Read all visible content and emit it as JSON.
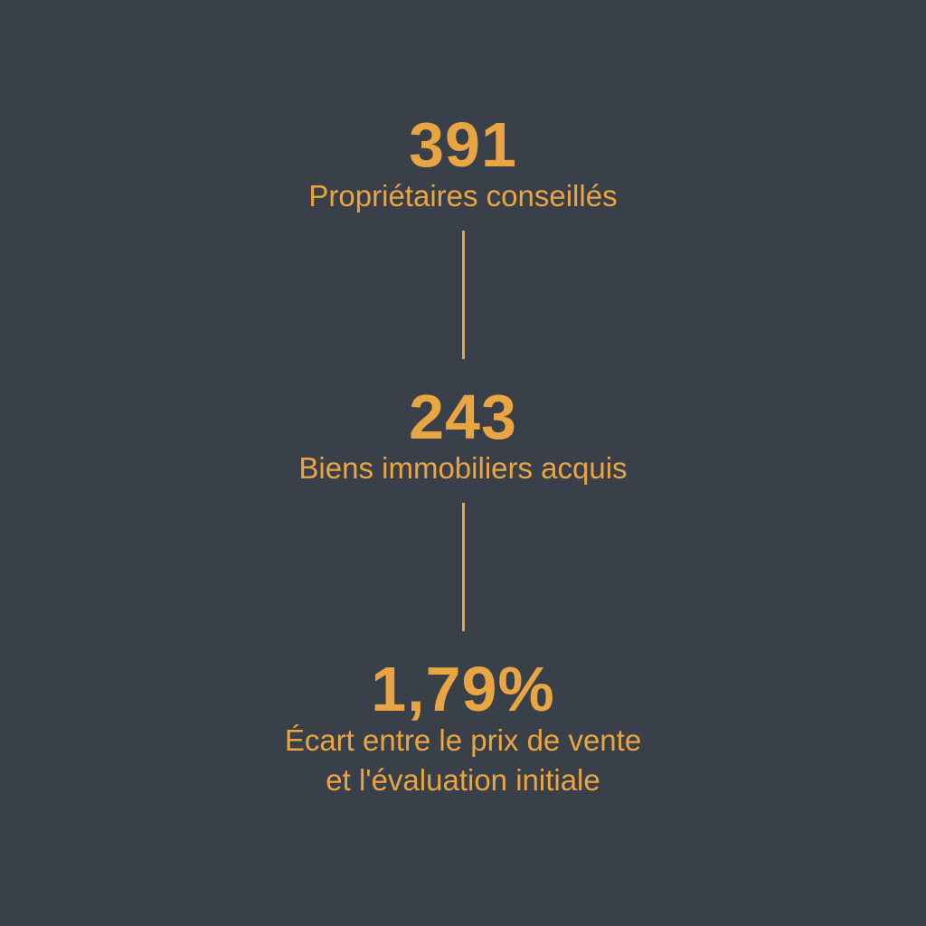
{
  "page": {
    "background_color": "#39404A",
    "accent_color": "#EAA543"
  },
  "stats": [
    {
      "value": "391",
      "label": "Propriétaires conseillés"
    },
    {
      "value": "243",
      "label": "Biens immobiliers acquis"
    },
    {
      "value": "1,79%",
      "label": "Écart entre le prix de vente\net l'évaluation initiale"
    }
  ]
}
